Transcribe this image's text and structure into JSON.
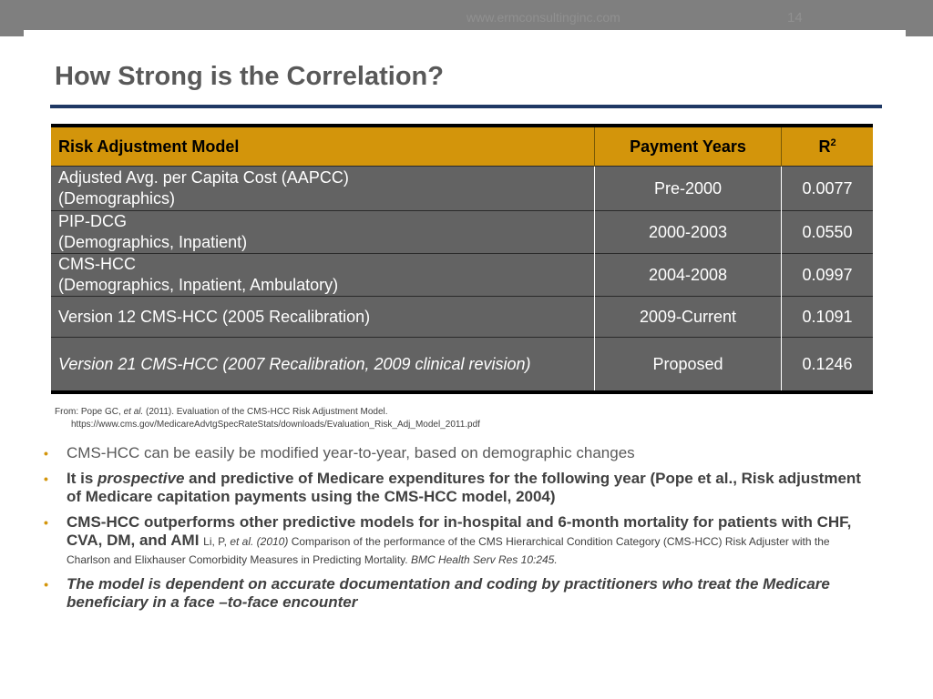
{
  "header": {
    "url": "www.ermconsultinginc.com",
    "page_number": "14"
  },
  "title": "How Strong is the Correlation?",
  "table": {
    "headers": {
      "model": "Risk Adjustment Model",
      "years": "Payment Years",
      "r2_base": "R",
      "r2_sup": "2"
    },
    "rows": [
      {
        "line1": "Adjusted Avg. per Capita Cost (AAPCC)",
        "line2": "(Demographics)",
        "years": "Pre-2000",
        "r2": "0.0077"
      },
      {
        "line1": "PIP-DCG",
        "line2": "(Demographics, Inpatient)",
        "years": "2000-2003",
        "r2": "0.0550"
      },
      {
        "line1": "CMS-HCC",
        "line2": "(Demographics, Inpatient, Ambulatory)",
        "years": "2004-2008",
        "r2": "0.0997"
      },
      {
        "line1": "Version 12 CMS-HCC (2005 Recalibration)",
        "line2": "",
        "years": "2009-Current",
        "r2": "0.1091"
      },
      {
        "line1": "Version 21 CMS-HCC (2007 Recalibration, 2009 clinical revision)",
        "line2": "",
        "years": "Proposed",
        "r2": "0.1246"
      }
    ]
  },
  "source": {
    "prefix": "From: Pope GC, ",
    "etal": "et al.",
    "text": " (2011). Evaluation of the CMS-HCC Risk Adjustment Model.",
    "url": "https://www.cms.gov/MedicareAdvtgSpecRateStats/downloads/Evaluation_Risk_Adj_Model_2011.pdf"
  },
  "bullets": {
    "b1": "CMS-HCC can be easily be modified year-to-year, based on demographic changes",
    "b2_a": "It is ",
    "b2_italic": "prospective",
    "b2_b": " and  predictive of Medicare expenditures for the following year (Pope et al., Risk adjustment of Medicare capitation payments using the CMS-HCC model, 2004)",
    "b3_a": "CMS-HCC outperforms other predictive models for in-hospital and 6-month mortality for patients with CHF, CVA, DM, and AMI ",
    "b3_cite_a": "Li, P, ",
    "b3_cite_etal": "et al. (2010)",
    "b3_cite_b": " Comparison of the performance of the CMS Hierarchical Condition Category (CMS-HCC) Risk Adjuster with the Charlson and Elixhauser Comorbidity Measures in Predicting Mortality. ",
    "b3_cite_journal": "BMC Health Serv Res 10:245.",
    "b4": "The model is dependent on accurate documentation and coding by practitioners who treat the Medicare beneficiary in a face –to-face encounter"
  },
  "colors": {
    "gold": "#d3950b",
    "cell_gray": "#636363",
    "rule_navy": "#1f3864",
    "topbar_gray": "#7f7f7f"
  }
}
